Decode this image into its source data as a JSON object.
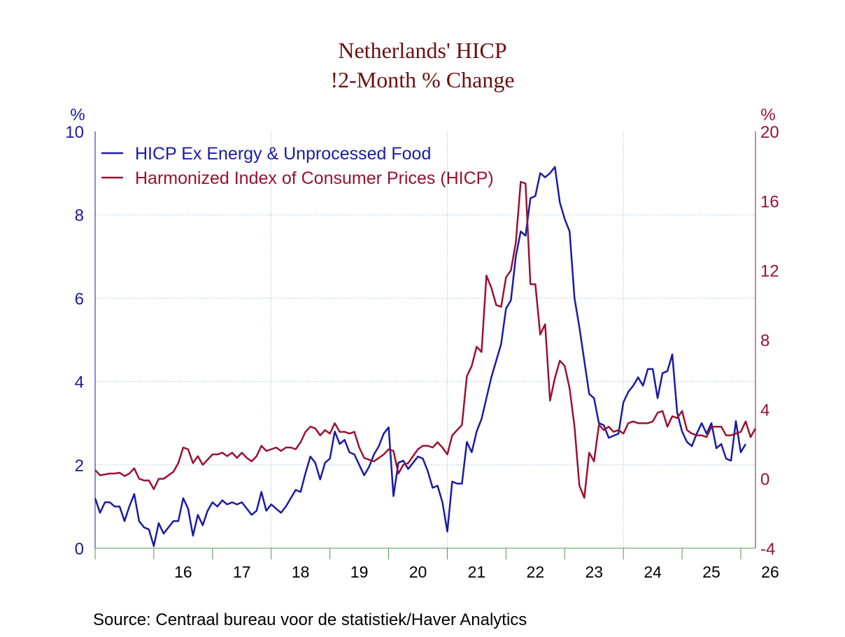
{
  "chart_data": {
    "type": "line",
    "title": "Netherlands' HICP",
    "subtitle": "!2-Month % Change",
    "y_left_unit": "%",
    "y_right_unit": "%",
    "y_left_range": [
      0,
      10
    ],
    "y_right_range": [
      -4,
      20
    ],
    "y_left_ticks": [
      "0",
      "2",
      "4",
      "6",
      "8",
      "10"
    ],
    "y_right_ticks": [
      "-4",
      "0",
      "4",
      "8",
      "12",
      "16",
      "20"
    ],
    "x_range": [
      2015.0,
      2026.25
    ],
    "x_ticks": [
      {
        "label": "16",
        "year": 2016
      },
      {
        "label": "17",
        "year": 2017
      },
      {
        "label": "18",
        "year": 2018
      },
      {
        "label": "19",
        "year": 2019
      },
      {
        "label": "20",
        "year": 2020
      },
      {
        "label": "21",
        "year": 2021
      },
      {
        "label": "22",
        "year": 2022
      },
      {
        "label": "23",
        "year": 2023
      },
      {
        "label": "24",
        "year": 2024
      },
      {
        "label": "25",
        "year": 2025
      },
      {
        "label": "26",
        "year": 2026
      }
    ],
    "grid": true,
    "legend_position": "top-left",
    "start": "2015-01",
    "series": [
      {
        "name": "HICP Ex Energy & Unprocessed Food",
        "color": "#1a1aa6",
        "axis": "left",
        "values": [
          1.2,
          0.85,
          1.1,
          1.1,
          1.0,
          1.0,
          0.65,
          1.0,
          1.3,
          0.65,
          0.5,
          0.45,
          0.05,
          0.6,
          0.35,
          0.5,
          0.65,
          0.65,
          1.2,
          0.95,
          0.3,
          0.8,
          0.55,
          0.9,
          1.1,
          1.0,
          1.15,
          1.05,
          1.1,
          1.05,
          1.1,
          0.95,
          0.8,
          0.9,
          1.35,
          0.9,
          1.05,
          0.95,
          0.85,
          1.0,
          1.2,
          1.4,
          1.35,
          1.8,
          2.2,
          2.05,
          1.65,
          2.05,
          2.15,
          2.8,
          2.5,
          2.6,
          2.3,
          2.25,
          2.0,
          1.75,
          1.95,
          2.25,
          2.45,
          2.75,
          2.9,
          1.25,
          2.05,
          2.1,
          1.9,
          2.05,
          2.2,
          2.15,
          1.85,
          1.45,
          1.5,
          1.1,
          0.4,
          1.6,
          1.55,
          1.55,
          2.55,
          2.3,
          2.8,
          3.1,
          3.6,
          4.1,
          4.5,
          4.9,
          5.75,
          5.95,
          7.0,
          7.6,
          7.5,
          8.4,
          8.45,
          9.0,
          8.9,
          9.0,
          9.15,
          8.3,
          7.9,
          7.6,
          6.0,
          5.3,
          4.5,
          3.7,
          3.6,
          3.0,
          2.95,
          2.65,
          2.7,
          2.75,
          3.5,
          3.75,
          3.9,
          4.1,
          3.9,
          4.3,
          4.3,
          3.6,
          4.2,
          4.25,
          4.65,
          3.25,
          2.8,
          2.55,
          2.45,
          2.75,
          3.0,
          2.75,
          3.0,
          2.4,
          2.5,
          2.15,
          2.1,
          3.05,
          2.3,
          2.5
        ]
      },
      {
        "name": "Harmonized Index of Consumer Prices (HICP)",
        "color": "#9b1030",
        "axis": "right",
        "values": [
          0.5,
          0.2,
          0.25,
          0.3,
          0.3,
          0.35,
          0.15,
          0.3,
          0.6,
          0.0,
          -0.1,
          -0.1,
          -0.6,
          0.0,
          0.0,
          0.2,
          0.4,
          0.9,
          1.8,
          1.7,
          0.9,
          1.3,
          0.8,
          1.1,
          1.4,
          1.4,
          1.5,
          1.3,
          1.5,
          1.2,
          1.5,
          1.2,
          1.0,
          1.3,
          1.9,
          1.6,
          1.7,
          1.8,
          1.6,
          1.8,
          1.8,
          1.7,
          2.1,
          2.7,
          3.0,
          2.9,
          2.5,
          2.8,
          2.6,
          3.2,
          2.7,
          2.7,
          2.6,
          2.7,
          1.8,
          1.2,
          1.1,
          1.0,
          1.2,
          1.4,
          1.7,
          1.6,
          0.3,
          0.8,
          0.9,
          1.3,
          1.7,
          1.9,
          1.9,
          1.8,
          2.1,
          1.8,
          1.4,
          2.5,
          2.8,
          3.1,
          5.9,
          6.5,
          7.6,
          7.3,
          11.7,
          11.0,
          10.0,
          9.9,
          11.6,
          12.0,
          13.6,
          17.1,
          17.0,
          11.2,
          11.2,
          8.3,
          8.9,
          4.5,
          5.8,
          6.8,
          6.5,
          5.2,
          3.0,
          -0.4,
          -1.1,
          1.5,
          1.0,
          3.1,
          2.8,
          3.0,
          2.7,
          2.8,
          2.6,
          3.2,
          3.3,
          3.2,
          3.2,
          3.2,
          3.3,
          3.8,
          3.9,
          3.0,
          3.6,
          3.5,
          3.9,
          2.8,
          2.6,
          2.5,
          2.5,
          2.4,
          3.0,
          3.0,
          3.0,
          2.5,
          2.5,
          2.6,
          2.7,
          3.3,
          2.4,
          2.9
        ]
      }
    ],
    "source": "Source:  Centraal bureau voor de statistiek/Haver Analytics"
  }
}
